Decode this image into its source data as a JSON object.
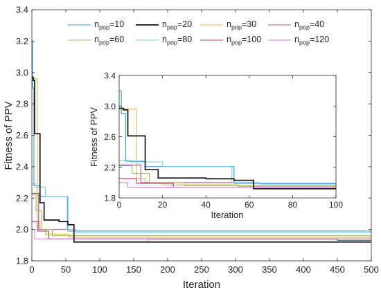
{
  "chart_data": [
    {
      "type": "line",
      "panel": "main",
      "xlabel": "Iteration",
      "ylabel": "Fitness of PPV",
      "xlim": [
        0,
        500
      ],
      "ylim": [
        1.8,
        3.4
      ],
      "xticks": [
        0,
        50,
        100,
        150,
        200,
        250,
        300,
        350,
        400,
        450,
        500
      ],
      "yticks": [
        1.8,
        2.0,
        2.2,
        2.4,
        2.6,
        2.8,
        3.0,
        3.2,
        3.4
      ],
      "legend_position": "top",
      "series": [
        {
          "name": "n_pop=10",
          "legend_base": "n",
          "legend_sub": "pop",
          "legend_rest": "=10",
          "color": "#3a9bd0",
          "width": 1.1,
          "points": [
            [
              0,
              3.2
            ],
            [
              1,
              3.2
            ],
            [
              1,
              2.9
            ],
            [
              3,
              2.9
            ],
            [
              3,
              2.28
            ],
            [
              12,
              2.28
            ],
            [
              12,
              2.21
            ],
            [
              53,
              2.21
            ],
            [
              53,
              1.99
            ],
            [
              500,
              1.99
            ]
          ]
        },
        {
          "name": "n_pop=20",
          "legend_base": "n",
          "legend_sub": "pop",
          "legend_rest": "=20",
          "color": "#111111",
          "width": 1.7,
          "points": [
            [
              0,
              2.97
            ],
            [
              2,
              2.97
            ],
            [
              2,
              2.95
            ],
            [
              4,
              2.95
            ],
            [
              4,
              2.61
            ],
            [
              12,
              2.61
            ],
            [
              12,
              2.17
            ],
            [
              18,
              2.17
            ],
            [
              18,
              2.06
            ],
            [
              40,
              2.06
            ],
            [
              40,
              2.05
            ],
            [
              53,
              2.05
            ],
            [
              53,
              2.03
            ],
            [
              62,
              2.03
            ],
            [
              62,
              1.92
            ],
            [
              500,
              1.92
            ]
          ]
        },
        {
          "name": "n_pop=30",
          "legend_base": "n",
          "legend_sub": "pop",
          "legend_rest": "=30",
          "color": "#e8b54a",
          "width": 1.1,
          "points": [
            [
              0,
              2.96
            ],
            [
              8,
              2.96
            ],
            [
              8,
              2.05
            ],
            [
              12,
              2.05
            ],
            [
              12,
              2.0
            ],
            [
              20,
              2.0
            ],
            [
              20,
              1.97
            ],
            [
              55,
              1.97
            ],
            [
              55,
              1.95
            ],
            [
              500,
              1.95
            ]
          ]
        },
        {
          "name": "n_pop=40",
          "legend_base": "n",
          "legend_sub": "pop",
          "legend_rest": "=40",
          "color": "#9e4f9c",
          "width": 1.1,
          "points": [
            [
              0,
              2.23
            ],
            [
              10,
              2.23
            ],
            [
              10,
              2.0
            ],
            [
              62,
              2.0
            ],
            [
              62,
              1.94
            ],
            [
              450,
              1.94
            ],
            [
              450,
              1.93
            ],
            [
              500,
              1.93
            ]
          ]
        },
        {
          "name": "n_pop=60",
          "legend_base": "n",
          "legend_sub": "pop",
          "legend_rest": "=60",
          "color": "#8cc460",
          "width": 1.1,
          "points": [
            [
              0,
              2.22
            ],
            [
              6,
              2.22
            ],
            [
              6,
              2.12
            ],
            [
              14,
              2.12
            ],
            [
              14,
              2.0
            ],
            [
              30,
              2.0
            ],
            [
              30,
              1.96
            ],
            [
              500,
              1.96
            ]
          ]
        },
        {
          "name": "n_pop=80",
          "legend_base": "n",
          "legend_sub": "pop",
          "legend_rest": "=80",
          "color": "#6fd0e8",
          "width": 1.1,
          "points": [
            [
              0,
              2.29
            ],
            [
              5,
              2.29
            ],
            [
              5,
              2.27
            ],
            [
              20,
              2.27
            ],
            [
              20,
              2.21
            ],
            [
              52,
              2.21
            ],
            [
              52,
              2.0
            ],
            [
              65,
              2.0
            ],
            [
              65,
              1.98
            ],
            [
              500,
              1.98
            ]
          ]
        },
        {
          "name": "n_pop=100",
          "legend_base": "n",
          "legend_sub": "pop",
          "legend_rest": "=100",
          "color": "#b03a5a",
          "width": 1.1,
          "points": [
            [
              0,
              2.05
            ],
            [
              8,
              2.05
            ],
            [
              8,
              1.99
            ],
            [
              25,
              1.99
            ],
            [
              25,
              1.94
            ],
            [
              500,
              1.94
            ]
          ]
        },
        {
          "name": "n_pop=120",
          "legend_base": "n",
          "legend_sub": "pop",
          "legend_rest": "=120",
          "color": "#e27ae0",
          "width": 1.1,
          "points": [
            [
              0,
              2.0
            ],
            [
              4,
              2.0
            ],
            [
              4,
              1.94
            ],
            [
              170,
              1.94
            ],
            [
              170,
              1.92
            ],
            [
              500,
              1.92
            ]
          ]
        }
      ]
    },
    {
      "type": "line",
      "panel": "inset",
      "xlabel": "Iteration",
      "ylabel": "Fitness of PPV",
      "xlim": [
        0,
        100
      ],
      "ylim": [
        1.8,
        3.4
      ],
      "xticks": [
        0,
        20,
        40,
        60,
        80,
        100
      ],
      "yticks": [
        1.8,
        2.2,
        2.6,
        3.0,
        3.4
      ],
      "series_ref": "same series as main panel, x range 0-100"
    }
  ]
}
